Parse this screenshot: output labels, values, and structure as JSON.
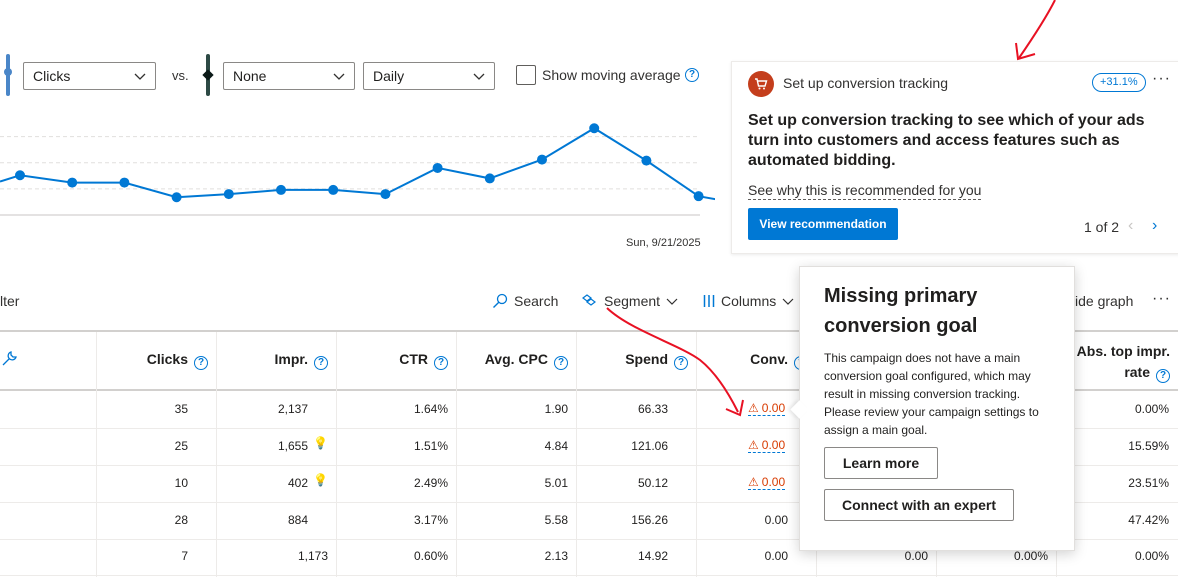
{
  "chart_controls": {
    "metric1": "Clicks",
    "vs": "vs.",
    "metric2": "None",
    "interval": "Daily",
    "moving_average_label": "Show moving average",
    "metric1_color": "#4a86c8",
    "metric2_color": "#2d4a45"
  },
  "chart_data": {
    "type": "line",
    "title": "",
    "xlabel": "",
    "ylabel": "",
    "last_date_label": "Sun, 9/21/2025",
    "series": [
      {
        "values": [
          38,
          31,
          31,
          17,
          20,
          24,
          24,
          20,
          45,
          35,
          53,
          83,
          52,
          18,
          9
        ]
      }
    ],
    "ylim": [
      0,
      110
    ],
    "grid": true,
    "line_color": "#0078d4"
  },
  "recommendation": {
    "kicker": "Set up conversion tracking",
    "badge": "+31.1%",
    "title": "Set up conversion tracking to see which of your ads turn into customers and access features such as automated bidding.",
    "why_link": "See why this is recommended for you",
    "button": "View recommendation",
    "pager": "1 of 2",
    "accent": "#c43e1c"
  },
  "toolbar": {
    "filter": "lter",
    "search": "Search",
    "segment": "Segment",
    "columns": "Columns",
    "hide_graph": "ide graph"
  },
  "table": {
    "headers": {
      "clicks": "Clicks",
      "impr": "Impr.",
      "ctr": "CTR",
      "avg_cpc": "Avg. CPC",
      "spend": "Spend",
      "conv": "Conv.",
      "abs_top_line1": "Abs. top impr.",
      "abs_top_line2": "rate"
    },
    "rows": [
      {
        "clicks": "35",
        "impr": "2,137",
        "ctr": "1.64%",
        "cpc": "1.90",
        "spend": "66.33",
        "conv": "0.00",
        "abs": "0.00%"
      },
      {
        "clicks": "25",
        "impr": "1,655",
        "ctr": "1.51%",
        "cpc": "4.84",
        "spend": "121.06",
        "conv": "0.00",
        "abs": "15.59%"
      },
      {
        "clicks": "10",
        "impr": "402",
        "ctr": "2.49%",
        "cpc": "5.01",
        "spend": "50.12",
        "conv": "0.00",
        "abs": "23.51%"
      },
      {
        "clicks": "28",
        "impr": "884",
        "ctr": "3.17%",
        "cpc": "5.58",
        "spend": "156.26",
        "conv": "0.00",
        "abs": "47.42%"
      },
      {
        "clicks": "7",
        "impr": "1,173",
        "ctr": "0.60%",
        "cpc": "2.13",
        "spend": "14.92",
        "conv": "0.00",
        "col7": "0.00",
        "col8": "0.00%",
        "abs": "0.00%"
      }
    ]
  },
  "popover": {
    "title": "Missing primary conversion goal",
    "body": "This campaign does not have a main conversion goal configured, which may result in missing conversion tracking. Please review your campaign settings to assign a main goal.",
    "learn_more": "Learn more",
    "connect": "Connect with an expert"
  }
}
